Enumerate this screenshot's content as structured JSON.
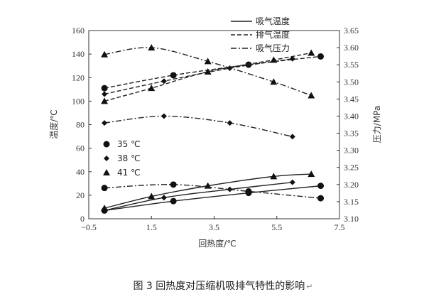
{
  "caption": {
    "text": "图 3  回热度对压缩机吸排气特性的影响",
    "return_mark": "↵"
  },
  "chart_data": {
    "type": "line",
    "title": "",
    "xlabel": "回热度/℃",
    "ylabel_left": "温度/℃",
    "ylabel_right": "压力/MPa",
    "xlim": [
      -0.5,
      7.5
    ],
    "ylim_left": [
      0,
      160
    ],
    "ylim_right": [
      3.1,
      3.65
    ],
    "x_ticks": [
      "−0.5",
      "1.5",
      "3.5",
      "5.5",
      "7.5"
    ],
    "x_tick_values": [
      -0.5,
      1.5,
      3.5,
      5.5,
      7.5
    ],
    "y_left_ticks": [
      "0",
      "20",
      "40",
      "60",
      "80",
      "100",
      "120",
      "140",
      "160"
    ],
    "y_left_tick_values": [
      0,
      20,
      40,
      60,
      80,
      100,
      120,
      140,
      160
    ],
    "y_right_ticks": [
      "3.10",
      "3.15",
      "3.20",
      "3.25",
      "3.30",
      "3.35",
      "3.40",
      "3.45",
      "3.50",
      "3.55",
      "3.60",
      "3.65"
    ],
    "y_right_tick_values": [
      3.1,
      3.15,
      3.2,
      3.25,
      3.3,
      3.35,
      3.4,
      3.45,
      3.5,
      3.55,
      3.6,
      3.65
    ],
    "line_legend": [
      {
        "label": "吸气温度",
        "style": "solid"
      },
      {
        "label": "排气温度",
        "style": "dashed"
      },
      {
        "label": "吸气压力",
        "style": "dashdot"
      }
    ],
    "marker_legend": [
      {
        "label": "35 ℃",
        "marker": "circle"
      },
      {
        "label": "38 ℃",
        "marker": "diamond"
      },
      {
        "label": "41 ℃",
        "marker": "triangle"
      }
    ],
    "legend_position": "top-right",
    "series": [
      {
        "kind": "吸气温度",
        "condition": "35 ℃",
        "marker": "circle",
        "style": "solid",
        "axis": "left",
        "x": [
          0.0,
          2.2,
          4.6,
          6.9
        ],
        "y": [
          7,
          15,
          22,
          28
        ]
      },
      {
        "kind": "吸气温度",
        "condition": "38 ℃",
        "marker": "diamond",
        "style": "solid",
        "axis": "left",
        "x": [
          0.0,
          1.9,
          4.0,
          6.0
        ],
        "y": [
          7,
          18,
          25,
          31
        ]
      },
      {
        "kind": "吸气温度",
        "condition": "41 ℃",
        "marker": "triangle",
        "style": "solid",
        "axis": "left",
        "x": [
          0.0,
          1.5,
          3.3,
          5.4,
          6.6
        ],
        "y": [
          9,
          19,
          28,
          36,
          38
        ]
      },
      {
        "kind": "排气温度",
        "condition": "35 ℃",
        "marker": "circle",
        "style": "dashed",
        "axis": "left",
        "x": [
          0.0,
          2.2,
          4.6,
          6.9
        ],
        "y": [
          111,
          122,
          131,
          138
        ]
      },
      {
        "kind": "排气温度",
        "condition": "38 ℃",
        "marker": "diamond",
        "style": "dashed",
        "axis": "left",
        "x": [
          0.0,
          1.9,
          4.0,
          6.0
        ],
        "y": [
          106,
          117,
          128,
          136
        ]
      },
      {
        "kind": "排气温度",
        "condition": "41 ℃",
        "marker": "triangle",
        "style": "dashed",
        "axis": "left",
        "x": [
          0.0,
          1.5,
          3.3,
          5.4,
          6.6
        ],
        "y": [
          100,
          111,
          125,
          135,
          141
        ]
      },
      {
        "kind": "吸气压力",
        "condition": "35 ℃",
        "marker": "circle",
        "style": "dashdot",
        "axis": "right",
        "x": [
          0.0,
          2.2,
          4.6,
          6.9
        ],
        "y": [
          3.19,
          3.2,
          3.18,
          3.16
        ]
      },
      {
        "kind": "吸气压力",
        "condition": "38 ℃",
        "marker": "diamond",
        "style": "dashdot",
        "axis": "right",
        "x": [
          0.0,
          1.9,
          4.0,
          6.0
        ],
        "y": [
          3.38,
          3.4,
          3.38,
          3.34
        ]
      },
      {
        "kind": "吸气压力",
        "condition": "41 ℃",
        "marker": "triangle",
        "style": "dashdot",
        "axis": "right",
        "x": [
          0.0,
          1.5,
          3.3,
          5.4,
          6.6
        ],
        "y": [
          3.58,
          3.6,
          3.56,
          3.5,
          3.46
        ]
      }
    ]
  }
}
